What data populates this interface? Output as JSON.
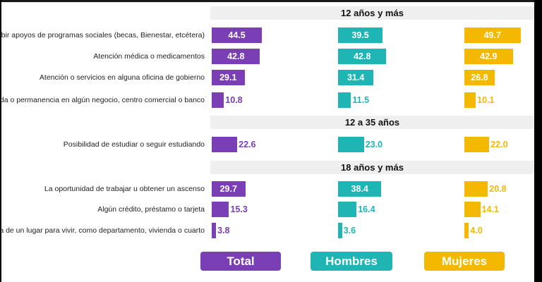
{
  "colors": {
    "total": "#7a3fb5",
    "hombres": "#1fb5b5",
    "mujeres": "#f5b800",
    "band": "#efefef"
  },
  "sections": [
    {
      "title": "12 años y más"
    },
    {
      "title": "12 a 35 años"
    },
    {
      "title": "18 años y más"
    }
  ],
  "chart_data": {
    "type": "bar",
    "xlim": [
      0,
      50
    ],
    "groups": [
      {
        "section": "12 años y más",
        "categories": [
          "Recibir apoyos de programas sociales (becas, Bienestar, etcétera)",
          "Atención médica o medicamentos",
          "Atención o servicios en alguna oficina de gobierno",
          "Entrada o permanencia en algún negocio, centro comercial o banco"
        ],
        "series": [
          {
            "name": "Total",
            "values": [
              44.5,
              42.8,
              29.1,
              10.8
            ]
          },
          {
            "name": "Hombres",
            "values": [
              39.5,
              42.8,
              31.4,
              11.5
            ]
          },
          {
            "name": "Mujeres",
            "values": [
              49.7,
              42.9,
              26.8,
              10.1
            ]
          }
        ]
      },
      {
        "section": "12 a 35 años",
        "categories": [
          "Posibilidad de estudiar o seguir estudiando"
        ],
        "series": [
          {
            "name": "Total",
            "values": [
              22.6
            ]
          },
          {
            "name": "Hombres",
            "values": [
              23.0
            ]
          },
          {
            "name": "Mujeres",
            "values": [
              22.0
            ]
          }
        ]
      },
      {
        "section": "18 años y más",
        "categories": [
          "La oportunidad de trabajar u obtener un ascenso",
          "Algún crédito, préstamo o tarjeta",
          "La renta de un lugar para vivir, como departamento, vivienda o cuarto"
        ],
        "series": [
          {
            "name": "Total",
            "values": [
              29.7,
              15.3,
              3.8
            ]
          },
          {
            "name": "Hombres",
            "values": [
              38.4,
              16.4,
              3.6
            ]
          },
          {
            "name": "Mujeres",
            "values": [
              20.8,
              14.1,
              4.0
            ]
          }
        ]
      }
    ]
  },
  "legend": {
    "total": "Total",
    "hombres": "Hombres",
    "mujeres": "Mujeres"
  }
}
